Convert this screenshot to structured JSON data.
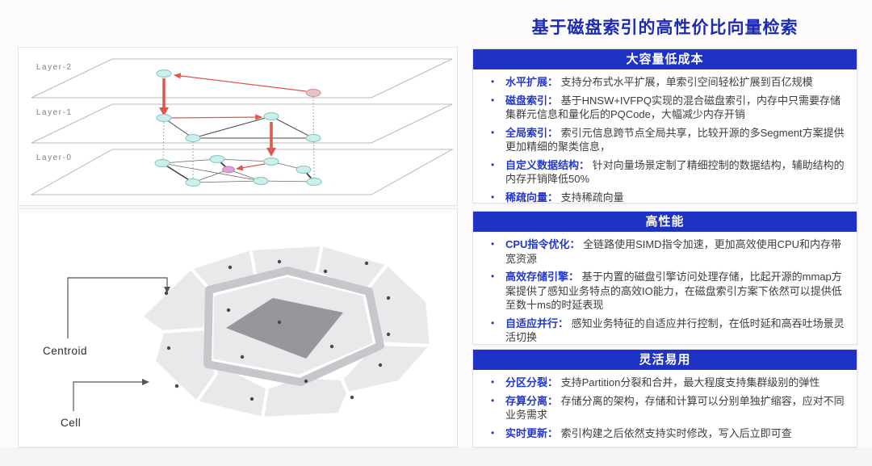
{
  "title": "基于磁盘索引的高性价比向量检索",
  "colors": {
    "header_bar": "#1e33c6",
    "term_blue": "#2438cc",
    "title_blue": "#1c2ab2",
    "arrow_red": "#e0564a",
    "cell_gray": "#e9e9eb",
    "highlight_gray": "#96969b"
  },
  "diagrams": {
    "hnsw": {
      "layers": [
        "Layer-2",
        "Layer-1",
        "Layer-0"
      ]
    },
    "voronoi": {
      "centroid_label": "Centroid",
      "cell_label": "Cell"
    }
  },
  "sections": [
    {
      "header": "大容量低成本",
      "bullets": [
        {
          "term": "水平扩展：",
          "desc": "支持分布式水平扩展，单索引空间轻松扩展到百亿规模"
        },
        {
          "term": "磁盘索引：",
          "desc": "基于HNSW+IVFPQ实现的混合磁盘索引，内存中只需要存储集群元信息和量化后的PQCode，大幅减少内存开销"
        },
        {
          "term": "全局索引：",
          "desc": "索引元信息跨节点全局共享，比较开源的多Segment方案提供更加精细的聚类信息，"
        },
        {
          "term": "自定义数据结构：",
          "desc": "针对向量场景定制了精细控制的数据结构，辅助结构的内存开销降低50%"
        },
        {
          "term": "稀疏向量：",
          "desc": "支持稀疏向量"
        }
      ]
    },
    {
      "header": "高性能",
      "bullets": [
        {
          "term": "CPU指令优化：",
          "desc": "全链路使用SIMD指令加速，更加高效使用CPU和内存带宽资源"
        },
        {
          "term": "高效存储引擎：",
          "desc": "基于内置的磁盘引擎访问处理存储，比起开源的mmap方案提供了感知业务特点的高效IO能力，在磁盘索引方案下依然可以提供低至数十ms的时延表现"
        },
        {
          "term": "自适应并行：",
          "desc": "感知业务特征的自适应并行控制，在低时延和高吞吐场景灵活切换"
        }
      ]
    },
    {
      "header": "灵活易用",
      "bullets": [
        {
          "term": "分区分裂：",
          "desc": "支持Partition分裂和合并，最大程度支持集群级别的弹性"
        },
        {
          "term": "存算分离：",
          "desc": "存储分离的架构，存储和计算可以分别单独扩缩容，应对不同业务需求"
        },
        {
          "term": "实时更新：",
          "desc": "索引构建之后依然支持实时修改，写入后立即可查"
        }
      ]
    }
  ]
}
